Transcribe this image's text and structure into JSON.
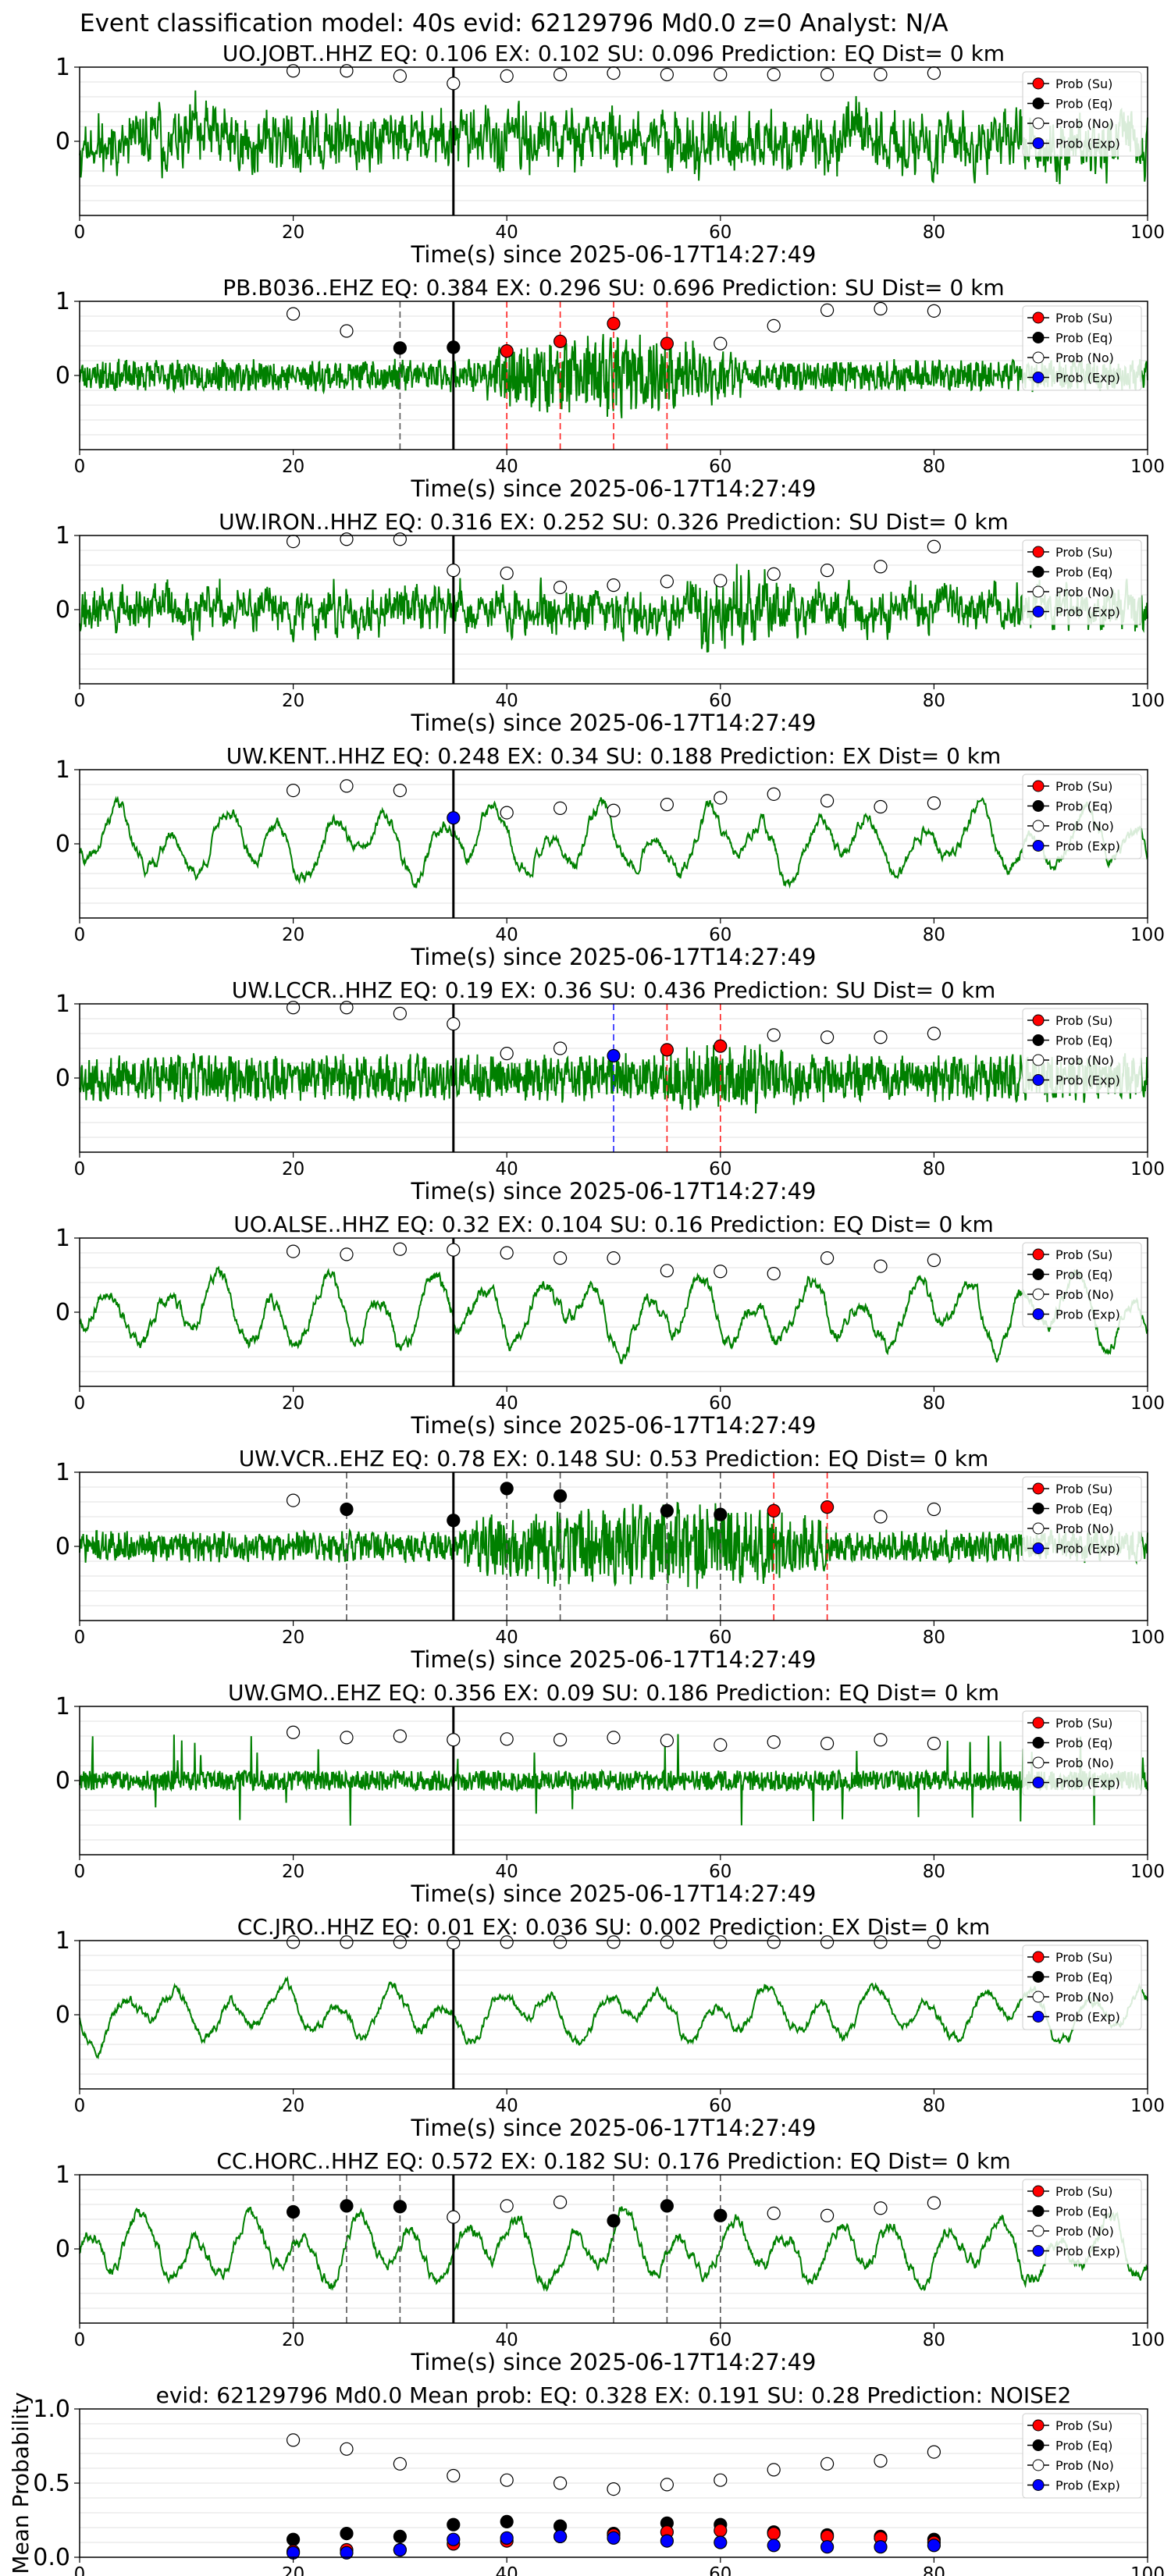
{
  "suptitle": "Event classification model: 40s evid: 62129796 Md0.0 z=0 Analyst: N/A",
  "legend_labels": [
    "Prob (Su)",
    "Prob (Eq)",
    "Prob (No)",
    "Prob (Exp)"
  ],
  "colors": {
    "waveform": "#008000",
    "su": "#ff0000",
    "eq": "#000000",
    "no": "#ffffff",
    "exp": "#0000ff",
    "grid": "#d9d9d9"
  },
  "chart_data": [
    {
      "type": "line",
      "title": "UO.JOBT..HHZ   EQ: 0.106  EX: 0.102  SU: 0.096   Prediction: EQ    Dist= 0 km",
      "xlabel": "Time(s) since 2025-06-17T14:27:49",
      "xlim": [
        0,
        100
      ],
      "ylim": [
        -1,
        1
      ],
      "xticks": [
        0,
        20,
        40,
        60,
        80,
        100
      ],
      "yticks": [
        0,
        1
      ],
      "grid": true,
      "legend": "top-right",
      "waveform": {
        "style": "broadband",
        "seed": 11,
        "amp": 0.5
      },
      "onset": 35,
      "probs": [
        {
          "t": 20,
          "v": 0.95,
          "c": "no"
        },
        {
          "t": 25,
          "v": 0.95,
          "c": "no"
        },
        {
          "t": 30,
          "v": 0.88,
          "c": "no"
        },
        {
          "t": 35,
          "v": 0.78,
          "c": "no"
        },
        {
          "t": 40,
          "v": 0.88,
          "c": "no"
        },
        {
          "t": 45,
          "v": 0.9,
          "c": "no"
        },
        {
          "t": 50,
          "v": 0.92,
          "c": "no"
        },
        {
          "t": 55,
          "v": 0.9,
          "c": "no"
        },
        {
          "t": 60,
          "v": 0.9,
          "c": "no"
        },
        {
          "t": 65,
          "v": 0.9,
          "c": "no"
        },
        {
          "t": 70,
          "v": 0.9,
          "c": "no"
        },
        {
          "t": 75,
          "v": 0.9,
          "c": "no"
        },
        {
          "t": 80,
          "v": 0.92,
          "c": "no"
        }
      ]
    },
    {
      "type": "line",
      "title": "PB.B036..EHZ   EQ: 0.384  EX: 0.296  SU: 0.696   Prediction: SU    Dist= 0 km",
      "xlabel": "Time(s) since 2025-06-17T14:27:49",
      "xlim": [
        0,
        100
      ],
      "ylim": [
        -1,
        1
      ],
      "xticks": [
        0,
        20,
        40,
        60,
        80,
        100
      ],
      "yticks": [
        0,
        1
      ],
      "grid": true,
      "legend": "top-right",
      "waveform": {
        "style": "hf",
        "seed": 23,
        "amp": 0.3,
        "burst": [
          38,
          62,
          2.6
        ]
      },
      "onset": 35,
      "probs": [
        {
          "t": 20,
          "v": 0.83,
          "c": "no"
        },
        {
          "t": 25,
          "v": 0.6,
          "c": "no"
        },
        {
          "t": 30,
          "v": 0.37,
          "c": "eq"
        },
        {
          "t": 35,
          "v": 0.38,
          "c": "eq"
        },
        {
          "t": 40,
          "v": 0.33,
          "c": "su"
        },
        {
          "t": 45,
          "v": 0.46,
          "c": "su"
        },
        {
          "t": 50,
          "v": 0.7,
          "c": "su"
        },
        {
          "t": 55,
          "v": 0.43,
          "c": "su"
        },
        {
          "t": 60,
          "v": 0.43,
          "c": "no"
        },
        {
          "t": 65,
          "v": 0.67,
          "c": "no"
        },
        {
          "t": 70,
          "v": 0.88,
          "c": "no"
        },
        {
          "t": 75,
          "v": 0.9,
          "c": "no"
        },
        {
          "t": 80,
          "v": 0.87,
          "c": "no"
        }
      ]
    },
    {
      "type": "line",
      "title": "UW.IRON..HHZ   EQ: 0.316  EX: 0.252  SU: 0.326   Prediction: SU    Dist= 0 km",
      "xlabel": "Time(s) since 2025-06-17T14:27:49",
      "xlim": [
        0,
        100
      ],
      "ylim": [
        -1,
        1
      ],
      "xticks": [
        0,
        20,
        40,
        60,
        80,
        100
      ],
      "yticks": [
        0,
        1
      ],
      "grid": true,
      "legend": "top-right",
      "waveform": {
        "style": "broadband",
        "seed": 37,
        "amp": 0.38,
        "burst": [
          55,
          66,
          1.9
        ]
      },
      "onset": 35,
      "probs": [
        {
          "t": 20,
          "v": 0.92,
          "c": "no"
        },
        {
          "t": 25,
          "v": 0.95,
          "c": "no"
        },
        {
          "t": 30,
          "v": 0.95,
          "c": "no"
        },
        {
          "t": 35,
          "v": 0.53,
          "c": "no"
        },
        {
          "t": 40,
          "v": 0.49,
          "c": "no"
        },
        {
          "t": 45,
          "v": 0.3,
          "c": "no"
        },
        {
          "t": 50,
          "v": 0.33,
          "c": "no"
        },
        {
          "t": 55,
          "v": 0.38,
          "c": "no"
        },
        {
          "t": 60,
          "v": 0.39,
          "c": "no"
        },
        {
          "t": 65,
          "v": 0.48,
          "c": "no"
        },
        {
          "t": 70,
          "v": 0.53,
          "c": "no"
        },
        {
          "t": 75,
          "v": 0.58,
          "c": "no"
        },
        {
          "t": 80,
          "v": 0.85,
          "c": "no"
        }
      ]
    },
    {
      "type": "line",
      "title": "UW.KENT..HHZ   EQ: 0.248  EX: 0.34  SU: 0.188   Prediction: EX    Dist= 0 km",
      "xlabel": "Time(s) since 2025-06-17T14:27:49",
      "xlim": [
        0,
        100
      ],
      "ylim": [
        -1,
        1
      ],
      "xticks": [
        0,
        20,
        40,
        60,
        80,
        100
      ],
      "yticks": [
        0,
        1
      ],
      "grid": true,
      "legend": "top-right",
      "waveform": {
        "style": "lowfreq",
        "seed": 41,
        "amp": 0.55
      },
      "onset": 35,
      "probs": [
        {
          "t": 20,
          "v": 0.72,
          "c": "no"
        },
        {
          "t": 25,
          "v": 0.78,
          "c": "no"
        },
        {
          "t": 30,
          "v": 0.72,
          "c": "no"
        },
        {
          "t": 35,
          "v": 0.35,
          "c": "exp"
        },
        {
          "t": 40,
          "v": 0.42,
          "c": "no"
        },
        {
          "t": 45,
          "v": 0.48,
          "c": "no"
        },
        {
          "t": 50,
          "v": 0.45,
          "c": "no"
        },
        {
          "t": 55,
          "v": 0.53,
          "c": "no"
        },
        {
          "t": 60,
          "v": 0.62,
          "c": "no"
        },
        {
          "t": 65,
          "v": 0.67,
          "c": "no"
        },
        {
          "t": 70,
          "v": 0.58,
          "c": "no"
        },
        {
          "t": 75,
          "v": 0.5,
          "c": "no"
        },
        {
          "t": 80,
          "v": 0.55,
          "c": "no"
        }
      ]
    },
    {
      "type": "line",
      "title": "UW.LCCR..HHZ   EQ: 0.19  EX: 0.36  SU: 0.436   Prediction: SU    Dist= 0 km",
      "xlabel": "Time(s) since 2025-06-17T14:27:49",
      "xlim": [
        0,
        100
      ],
      "ylim": [
        -1,
        1
      ],
      "xticks": [
        0,
        20,
        40,
        60,
        80,
        100
      ],
      "yticks": [
        0,
        1
      ],
      "grid": true,
      "legend": "top-right",
      "waveform": {
        "style": "hf",
        "seed": 53,
        "amp": 0.45,
        "burst": [
          52,
          68,
          1.6
        ]
      },
      "onset": 35,
      "probs": [
        {
          "t": 20,
          "v": 0.95,
          "c": "no"
        },
        {
          "t": 25,
          "v": 0.95,
          "c": "no"
        },
        {
          "t": 30,
          "v": 0.87,
          "c": "no"
        },
        {
          "t": 35,
          "v": 0.73,
          "c": "no"
        },
        {
          "t": 40,
          "v": 0.33,
          "c": "no"
        },
        {
          "t": 45,
          "v": 0.4,
          "c": "no"
        },
        {
          "t": 50,
          "v": 0.3,
          "c": "exp"
        },
        {
          "t": 55,
          "v": 0.38,
          "c": "su"
        },
        {
          "t": 60,
          "v": 0.43,
          "c": "su"
        },
        {
          "t": 65,
          "v": 0.58,
          "c": "no"
        },
        {
          "t": 70,
          "v": 0.55,
          "c": "no"
        },
        {
          "t": 75,
          "v": 0.55,
          "c": "no"
        },
        {
          "t": 80,
          "v": 0.6,
          "c": "no"
        }
      ]
    },
    {
      "type": "line",
      "title": "UO.ALSE..HHZ   EQ: 0.32  EX: 0.104  SU: 0.16   Prediction: EQ    Dist= 0 km",
      "xlabel": "Time(s) since 2025-06-17T14:27:49",
      "xlim": [
        0,
        100
      ],
      "ylim": [
        -1,
        1
      ],
      "xticks": [
        0,
        20,
        40,
        60,
        80,
        100
      ],
      "yticks": [
        0,
        1
      ],
      "grid": true,
      "legend": "top-right",
      "waveform": {
        "style": "lowfreq",
        "seed": 67,
        "amp": 0.6
      },
      "onset": 35,
      "probs": [
        {
          "t": 20,
          "v": 0.82,
          "c": "no"
        },
        {
          "t": 25,
          "v": 0.78,
          "c": "no"
        },
        {
          "t": 30,
          "v": 0.85,
          "c": "no"
        },
        {
          "t": 35,
          "v": 0.84,
          "c": "no"
        },
        {
          "t": 40,
          "v": 0.8,
          "c": "no"
        },
        {
          "t": 45,
          "v": 0.73,
          "c": "no"
        },
        {
          "t": 50,
          "v": 0.73,
          "c": "no"
        },
        {
          "t": 55,
          "v": 0.56,
          "c": "no"
        },
        {
          "t": 60,
          "v": 0.55,
          "c": "no"
        },
        {
          "t": 65,
          "v": 0.52,
          "c": "no"
        },
        {
          "t": 70,
          "v": 0.73,
          "c": "no"
        },
        {
          "t": 75,
          "v": 0.62,
          "c": "no"
        },
        {
          "t": 80,
          "v": 0.7,
          "c": "no"
        }
      ]
    },
    {
      "type": "line",
      "title": "UW.VCR..EHZ   EQ: 0.78  EX: 0.148  SU: 0.53   Prediction: EQ    Dist= 0 km",
      "xlabel": "Time(s) since 2025-06-17T14:27:49",
      "xlim": [
        0,
        100
      ],
      "ylim": [
        -1,
        1
      ],
      "xticks": [
        0,
        20,
        40,
        60,
        80,
        100
      ],
      "yticks": [
        0,
        1
      ],
      "grid": true,
      "legend": "top-right",
      "waveform": {
        "style": "hf",
        "seed": 71,
        "amp": 0.3,
        "burst": [
          36,
          70,
          2.8
        ]
      },
      "onset": 35,
      "probs": [
        {
          "t": 20,
          "v": 0.62,
          "c": "no"
        },
        {
          "t": 25,
          "v": 0.5,
          "c": "eq"
        },
        {
          "t": 35,
          "v": 0.35,
          "c": "eq"
        },
        {
          "t": 40,
          "v": 0.78,
          "c": "eq"
        },
        {
          "t": 45,
          "v": 0.68,
          "c": "eq"
        },
        {
          "t": 55,
          "v": 0.48,
          "c": "eq"
        },
        {
          "t": 60,
          "v": 0.43,
          "c": "eq"
        },
        {
          "t": 65,
          "v": 0.48,
          "c": "su"
        },
        {
          "t": 70,
          "v": 0.53,
          "c": "su"
        },
        {
          "t": 75,
          "v": 0.4,
          "c": "no"
        },
        {
          "t": 80,
          "v": 0.5,
          "c": "no"
        }
      ]
    },
    {
      "type": "line",
      "title": "UW.GMO..EHZ   EQ: 0.356  EX: 0.09  SU: 0.186   Prediction: EQ    Dist= 0 km",
      "xlabel": "Time(s) since 2025-06-17T14:27:49",
      "xlim": [
        0,
        100
      ],
      "ylim": [
        -1,
        1
      ],
      "xticks": [
        0,
        20,
        40,
        60,
        80,
        100
      ],
      "yticks": [
        0,
        1
      ],
      "grid": true,
      "legend": "top-right",
      "waveform": {
        "style": "spiky",
        "seed": 83,
        "amp": 0.3
      },
      "onset": 35,
      "probs": [
        {
          "t": 20,
          "v": 0.65,
          "c": "no"
        },
        {
          "t": 25,
          "v": 0.58,
          "c": "no"
        },
        {
          "t": 30,
          "v": 0.6,
          "c": "no"
        },
        {
          "t": 35,
          "v": 0.55,
          "c": "no"
        },
        {
          "t": 40,
          "v": 0.56,
          "c": "no"
        },
        {
          "t": 45,
          "v": 0.55,
          "c": "no"
        },
        {
          "t": 50,
          "v": 0.58,
          "c": "no"
        },
        {
          "t": 55,
          "v": 0.54,
          "c": "no"
        },
        {
          "t": 60,
          "v": 0.48,
          "c": "no"
        },
        {
          "t": 65,
          "v": 0.52,
          "c": "no"
        },
        {
          "t": 70,
          "v": 0.5,
          "c": "no"
        },
        {
          "t": 75,
          "v": 0.55,
          "c": "no"
        },
        {
          "t": 80,
          "v": 0.5,
          "c": "no"
        }
      ]
    },
    {
      "type": "line",
      "title": "CC.JRO..HHZ   EQ: 0.01  EX: 0.036  SU: 0.002   Prediction: EX    Dist= 0 km",
      "xlabel": "Time(s) since 2025-06-17T14:27:49",
      "xlim": [
        0,
        100
      ],
      "ylim": [
        -1,
        1
      ],
      "xticks": [
        0,
        20,
        40,
        60,
        80,
        100
      ],
      "yticks": [
        0,
        1
      ],
      "grid": true,
      "legend": "top-right",
      "waveform": {
        "style": "lowfreq",
        "seed": 97,
        "amp": 0.42
      },
      "onset": 35,
      "probs": [
        {
          "t": 20,
          "v": 0.98,
          "c": "no"
        },
        {
          "t": 25,
          "v": 0.98,
          "c": "no"
        },
        {
          "t": 30,
          "v": 0.98,
          "c": "no"
        },
        {
          "t": 35,
          "v": 0.97,
          "c": "no"
        },
        {
          "t": 40,
          "v": 0.98,
          "c": "no"
        },
        {
          "t": 45,
          "v": 0.98,
          "c": "no"
        },
        {
          "t": 50,
          "v": 0.98,
          "c": "no"
        },
        {
          "t": 55,
          "v": 0.98,
          "c": "no"
        },
        {
          "t": 60,
          "v": 0.98,
          "c": "no"
        },
        {
          "t": 65,
          "v": 0.98,
          "c": "no"
        },
        {
          "t": 70,
          "v": 0.98,
          "c": "no"
        },
        {
          "t": 75,
          "v": 0.98,
          "c": "no"
        },
        {
          "t": 80,
          "v": 0.98,
          "c": "no"
        }
      ]
    },
    {
      "type": "line",
      "title": "CC.HORC..HHZ   EQ: 0.572  EX: 0.182  SU: 0.176   Prediction: EQ    Dist= 0 km",
      "xlabel": "Time(s) since 2025-06-17T14:27:49",
      "xlim": [
        0,
        100
      ],
      "ylim": [
        -1,
        1
      ],
      "xticks": [
        0,
        20,
        40,
        60,
        80,
        100
      ],
      "yticks": [
        0,
        1
      ],
      "grid": true,
      "legend": "top-right",
      "waveform": {
        "style": "lowfreq",
        "seed": 101,
        "amp": 0.55
      },
      "onset": 35,
      "probs": [
        {
          "t": 20,
          "v": 0.5,
          "c": "eq"
        },
        {
          "t": 25,
          "v": 0.58,
          "c": "eq"
        },
        {
          "t": 30,
          "v": 0.57,
          "c": "eq"
        },
        {
          "t": 35,
          "v": 0.43,
          "c": "no"
        },
        {
          "t": 40,
          "v": 0.58,
          "c": "no"
        },
        {
          "t": 45,
          "v": 0.63,
          "c": "no"
        },
        {
          "t": 50,
          "v": 0.38,
          "c": "eq"
        },
        {
          "t": 55,
          "v": 0.58,
          "c": "eq"
        },
        {
          "t": 60,
          "v": 0.45,
          "c": "eq"
        },
        {
          "t": 65,
          "v": 0.48,
          "c": "no"
        },
        {
          "t": 70,
          "v": 0.45,
          "c": "no"
        },
        {
          "t": 75,
          "v": 0.55,
          "c": "no"
        },
        {
          "t": 80,
          "v": 0.62,
          "c": "no"
        }
      ]
    },
    {
      "type": "scatter",
      "title": "evid: 62129796  Md0.0   Mean prob:   EQ: 0.328  EX: 0.191  SU: 0.28   Prediction: NOISE2",
      "xlabel": "",
      "ylabel": "Mean Probability",
      "xlim": [
        0,
        100
      ],
      "ylim": [
        0,
        1
      ],
      "xticks": [
        0,
        20,
        40,
        60,
        80,
        100
      ],
      "yticks": [
        0.0,
        0.5,
        1.0
      ],
      "ytick_labels": [
        "0.0",
        "0.5",
        "1.0"
      ],
      "grid": true,
      "legend": "top-right",
      "x": [
        20,
        25,
        30,
        35,
        40,
        45,
        50,
        55,
        60,
        65,
        70,
        75,
        80
      ],
      "series": [
        {
          "key": "no",
          "values": [
            0.79,
            0.73,
            0.63,
            0.55,
            0.52,
            0.5,
            0.46,
            0.49,
            0.52,
            0.59,
            0.63,
            0.65,
            0.71
          ]
        },
        {
          "key": "eq",
          "values": [
            0.12,
            0.16,
            0.14,
            0.22,
            0.24,
            0.21,
            0.16,
            0.23,
            0.22,
            0.17,
            0.15,
            0.14,
            0.12
          ]
        },
        {
          "key": "su",
          "values": [
            0.04,
            0.05,
            0.05,
            0.09,
            0.11,
            0.14,
            0.15,
            0.17,
            0.18,
            0.16,
            0.14,
            0.13,
            0.1
          ]
        },
        {
          "key": "exp",
          "values": [
            0.03,
            0.03,
            0.05,
            0.12,
            0.13,
            0.14,
            0.13,
            0.11,
            0.1,
            0.08,
            0.07,
            0.07,
            0.08
          ]
        }
      ]
    }
  ]
}
